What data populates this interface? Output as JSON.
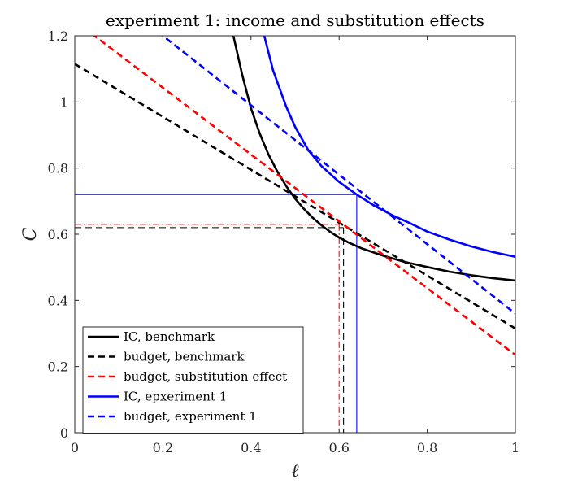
{
  "chart_data": {
    "type": "line",
    "title": "experiment 1: income and substitution effects",
    "xlabel": "ℓ",
    "ylabel": "C",
    "xlim": [
      0,
      1
    ],
    "ylim": [
      0,
      1.2
    ],
    "xticks": [
      0,
      0.2,
      0.4,
      0.6,
      0.8,
      1
    ],
    "xtick_labels": [
      "0",
      "0.2",
      "0.4",
      "0.6",
      "0.8",
      "1"
    ],
    "yticks": [
      0,
      0.2,
      0.4,
      0.6,
      0.8,
      1,
      1.2
    ],
    "ytick_labels": [
      "0",
      "0.2",
      "0.4",
      "0.6",
      "0.8",
      "1",
      "1.2"
    ],
    "grid": false,
    "box": true,
    "legend_position": "bottom-left",
    "series": [
      {
        "name": "IC, benchmark",
        "kind": "indifference-curve",
        "color": "#000000",
        "style": "solid",
        "x": [
          0.36,
          0.38,
          0.4,
          0.42,
          0.44,
          0.46,
          0.48,
          0.5,
          0.52,
          0.54,
          0.56,
          0.58,
          0.6,
          0.62,
          0.65,
          0.7,
          0.75,
          0.8,
          0.85,
          0.9,
          0.95,
          1.0
        ],
        "y": [
          1.2,
          1.082,
          0.981,
          0.904,
          0.84,
          0.789,
          0.745,
          0.708,
          0.677,
          0.65,
          0.627,
          0.607,
          0.59,
          0.576,
          0.558,
          0.535,
          0.516,
          0.501,
          0.487,
          0.476,
          0.467,
          0.46
        ]
      },
      {
        "name": "budget, benchmark",
        "kind": "budget-line",
        "color": "#000000",
        "style": "dashed",
        "x": [
          0,
          1
        ],
        "y": [
          1.115,
          0.315
        ]
      },
      {
        "name": "budget, substitution effect",
        "kind": "budget-line",
        "color": "#ff0000",
        "style": "dashed",
        "x": [
          0,
          1
        ],
        "y": [
          1.245,
          0.235
        ]
      },
      {
        "name": "IC, epxeriment 1",
        "kind": "indifference-curve",
        "color": "#0000ff",
        "style": "solid",
        "x": [
          0.43,
          0.45,
          0.48,
          0.5,
          0.53,
          0.56,
          0.6,
          0.64,
          0.68,
          0.72,
          0.76,
          0.8,
          0.85,
          0.9,
          0.95,
          1.0
        ],
        "y": [
          1.2,
          1.096,
          0.985,
          0.925,
          0.854,
          0.806,
          0.758,
          0.72,
          0.686,
          0.658,
          0.634,
          0.608,
          0.584,
          0.563,
          0.546,
          0.532
        ]
      },
      {
        "name": "budget, experiment 1",
        "kind": "budget-line",
        "color": "#0000ff",
        "style": "dashed",
        "x": [
          0,
          1
        ],
        "y": [
          1.41,
          0.36
        ]
      }
    ],
    "reference_lines": [
      {
        "group": "benchmark",
        "color": "#000000",
        "style": "dashed",
        "x": 0.61,
        "y": 0.62
      },
      {
        "group": "substitution effect",
        "color": "#ff0000",
        "style": "dashdot",
        "x": 0.6,
        "y": 0.63
      },
      {
        "group": "experiment 1",
        "color": "#0000ff",
        "style": "solid",
        "x": 0.64,
        "y": 0.72
      }
    ]
  }
}
